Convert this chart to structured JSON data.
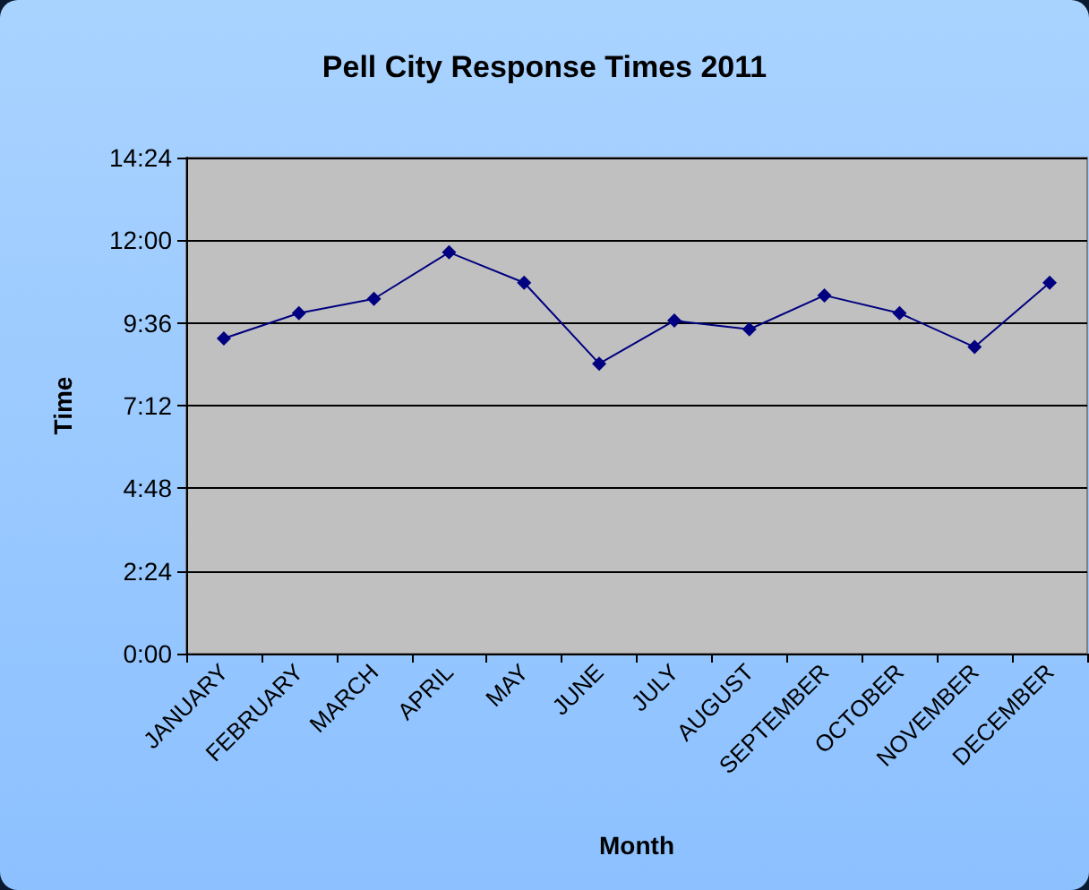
{
  "chart_data": {
    "type": "line",
    "title": "Pell City Response Times 2011",
    "xlabel": "Month",
    "ylabel": "Time",
    "categories": [
      "JANUARY",
      "FEBRUARY",
      "MARCH",
      "APRIL",
      "MAY",
      "JUNE",
      "JULY",
      "AUGUST",
      "SEPTEMBER",
      "OCTOBER",
      "NOVEMBER",
      "DECEMBER"
    ],
    "series": [
      {
        "color": "#000080",
        "values": [
          549,
          593,
          618,
          699,
          646,
          505,
          580,
          565,
          624,
          593,
          534,
          646
        ]
      }
    ],
    "ylim": [
      0,
      864
    ],
    "yticks": [
      {
        "value": 0,
        "label": "0:00"
      },
      {
        "value": 144,
        "label": "2:24"
      },
      {
        "value": 288,
        "label": "4:48"
      },
      {
        "value": 432,
        "label": "7:12"
      },
      {
        "value": 576,
        "label": "9:36"
      },
      {
        "value": 720,
        "label": "12:00"
      },
      {
        "value": 864,
        "label": "14:24"
      }
    ],
    "grid": "y",
    "marker": "diamond",
    "line_style": "solid"
  }
}
